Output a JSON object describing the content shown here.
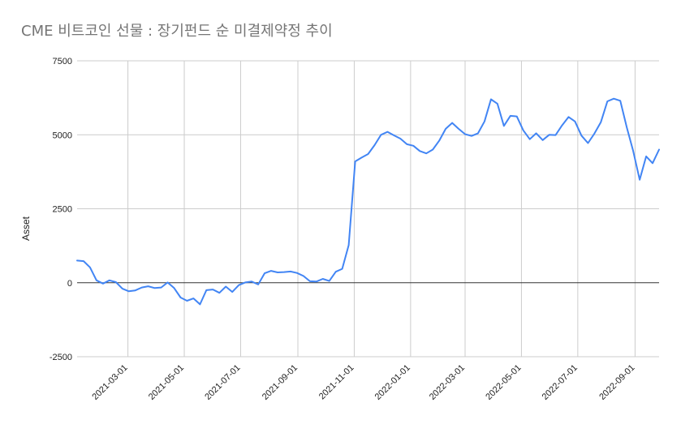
{
  "chart_data": {
    "type": "line",
    "title": "CME 비트코인 선물 : 장기펀드 순 미결제약정 추이",
    "xlabel": "",
    "ylabel": "Asset",
    "ylim": [
      -2500,
      7500
    ],
    "yticks": [
      7500,
      5000,
      2500,
      0,
      -2500
    ],
    "ytick_labels": [
      "7500",
      "5000",
      "2500",
      "0",
      "-2500"
    ],
    "xlim": [
      "2021-01-05",
      "2022-09-27"
    ],
    "xticks": [
      "2021-03-01",
      "2021-05-01",
      "2021-07-01",
      "2021-09-01",
      "2021-11-01",
      "2022-01-01",
      "2022-03-01",
      "2022-05-01",
      "2022-07-01",
      "2022-09-01"
    ],
    "grid": true,
    "series": [
      {
        "name": "",
        "color": "#4285f4",
        "points": [
          [
            "2021-01-05",
            750
          ],
          [
            "2021-01-12",
            730
          ],
          [
            "2021-01-19",
            520
          ],
          [
            "2021-01-26",
            80
          ],
          [
            "2021-02-02",
            -30
          ],
          [
            "2021-02-09",
            80
          ],
          [
            "2021-02-16",
            20
          ],
          [
            "2021-02-23",
            -200
          ],
          [
            "2021-03-02",
            -290
          ],
          [
            "2021-03-09",
            -260
          ],
          [
            "2021-03-16",
            -160
          ],
          [
            "2021-03-23",
            -120
          ],
          [
            "2021-03-30",
            -180
          ],
          [
            "2021-04-06",
            -160
          ],
          [
            "2021-04-13",
            10
          ],
          [
            "2021-04-20",
            -180
          ],
          [
            "2021-04-27",
            -500
          ],
          [
            "2021-05-04",
            -610
          ],
          [
            "2021-05-11",
            -530
          ],
          [
            "2021-05-18",
            -730
          ],
          [
            "2021-05-25",
            -250
          ],
          [
            "2021-06-01",
            -230
          ],
          [
            "2021-06-08",
            -340
          ],
          [
            "2021-06-15",
            -130
          ],
          [
            "2021-06-22",
            -310
          ],
          [
            "2021-06-29",
            -80
          ],
          [
            "2021-07-06",
            10
          ],
          [
            "2021-07-13",
            40
          ],
          [
            "2021-07-20",
            -60
          ],
          [
            "2021-07-27",
            320
          ],
          [
            "2021-08-03",
            400
          ],
          [
            "2021-08-10",
            350
          ],
          [
            "2021-08-17",
            360
          ],
          [
            "2021-08-24",
            380
          ],
          [
            "2021-08-31",
            330
          ],
          [
            "2021-09-07",
            230
          ],
          [
            "2021-09-14",
            50
          ],
          [
            "2021-09-21",
            40
          ],
          [
            "2021-09-28",
            130
          ],
          [
            "2021-10-05",
            60
          ],
          [
            "2021-10-12",
            370
          ],
          [
            "2021-10-19",
            470
          ],
          [
            "2021-10-26",
            1270
          ],
          [
            "2021-11-02",
            4100
          ],
          [
            "2021-11-09",
            4230
          ],
          [
            "2021-11-16",
            4350
          ],
          [
            "2021-11-23",
            4650
          ],
          [
            "2021-11-30",
            5000
          ],
          [
            "2021-12-07",
            5100
          ],
          [
            "2021-12-14",
            4980
          ],
          [
            "2021-12-21",
            4870
          ],
          [
            "2021-12-28",
            4680
          ],
          [
            "2022-01-04",
            4630
          ],
          [
            "2022-01-11",
            4450
          ],
          [
            "2022-01-18",
            4370
          ],
          [
            "2022-01-25",
            4500
          ],
          [
            "2022-02-01",
            4800
          ],
          [
            "2022-02-08",
            5200
          ],
          [
            "2022-02-15",
            5400
          ],
          [
            "2022-02-22",
            5200
          ],
          [
            "2022-03-01",
            5020
          ],
          [
            "2022-03-08",
            4960
          ],
          [
            "2022-03-15",
            5050
          ],
          [
            "2022-03-22",
            5450
          ],
          [
            "2022-03-29",
            6200
          ],
          [
            "2022-04-05",
            6050
          ],
          [
            "2022-04-12",
            5300
          ],
          [
            "2022-04-19",
            5640
          ],
          [
            "2022-04-26",
            5620
          ],
          [
            "2022-05-03",
            5150
          ],
          [
            "2022-05-10",
            4850
          ],
          [
            "2022-05-17",
            5050
          ],
          [
            "2022-05-24",
            4820
          ],
          [
            "2022-05-31",
            5000
          ],
          [
            "2022-06-07",
            4990
          ],
          [
            "2022-06-14",
            5320
          ],
          [
            "2022-06-21",
            5600
          ],
          [
            "2022-06-28",
            5450
          ],
          [
            "2022-07-05",
            4970
          ],
          [
            "2022-07-12",
            4720
          ],
          [
            "2022-07-19",
            5040
          ],
          [
            "2022-07-26",
            5430
          ],
          [
            "2022-08-02",
            6130
          ],
          [
            "2022-08-09",
            6220
          ],
          [
            "2022-08-16",
            6150
          ],
          [
            "2022-08-23",
            5250
          ],
          [
            "2022-08-30",
            4450
          ],
          [
            "2022-09-06",
            3480
          ],
          [
            "2022-09-13",
            4270
          ],
          [
            "2022-09-20",
            4040
          ],
          [
            "2022-09-27",
            4500
          ]
        ]
      }
    ]
  }
}
